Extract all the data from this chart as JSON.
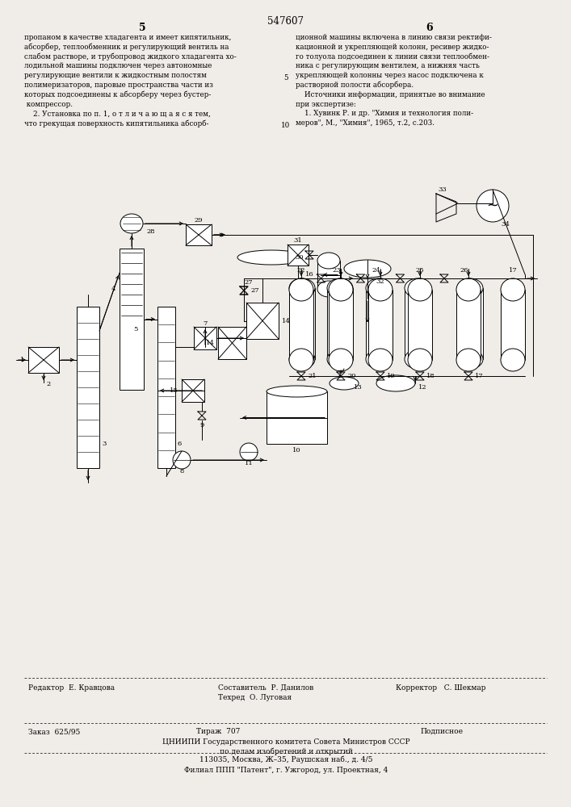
{
  "page_bg": "#f0ede8",
  "patent_number": "547607",
  "col_left_num": "5",
  "col_right_num": "6",
  "text_col1": [
    "пропаном в качестве хладагента и имеет кипятильник,",
    "абсорбер, теплообменник и регулирующий вентиль на",
    "слабом растворе, и трубопровод жидкого хладагента хо-",
    "лодильной машины подключен через автономные",
    "регулирующие вентили к жидкостным полостям",
    "полимеризаторов, паровые пространства части из",
    "которых подсоединены к абсорберу через бустер-",
    " компрессор.",
    "    2. Установка по п. 1, о т л и ч а ю щ а я с я тем,",
    "что грекущая поверхность кипятильника абсорб-"
  ],
  "text_col2": [
    "ционной машины включена в линию связи ректифи-",
    "кационной и укрепляющей колонн, ресивер жидко-",
    "го толуола подсоединен к линии связи теплообмен-",
    "ника с регулирующим вентилем, а нижняя часть",
    "укрепляющей колонны через насос подключена к",
    "растворной полости абсорбера.",
    "    Источники информации, принятые во внимание",
    "при экспертизе:",
    "    1. Хувинк Р. и др. \"Химия и технология поли-",
    "меров\", М., \"Химия\", 1965, т.2, с.203."
  ],
  "footer_editor": "Редактор  Е. Кравцова",
  "footer_compiler": "Составитель  Р. Данилов",
  "footer_tech": "Техред  О. Луговая",
  "footer_corrector": "Корректор   С. Шекмар",
  "footer_order": "Заказ  625/95",
  "footer_circ": "Тираж  707",
  "footer_sub": "Подписное",
  "footer_org1": "ЦНИИПИ Государственного комитета Совета Министров СССР",
  "footer_org2": "по делам изобретений и открытий",
  "footer_addr": "113035, Москва, Ж–35, Раушская наб., д. 4/5",
  "footer_branch": "Филиал ППП \"Патент\", г. Ужгород, ул. Проектная, 4"
}
